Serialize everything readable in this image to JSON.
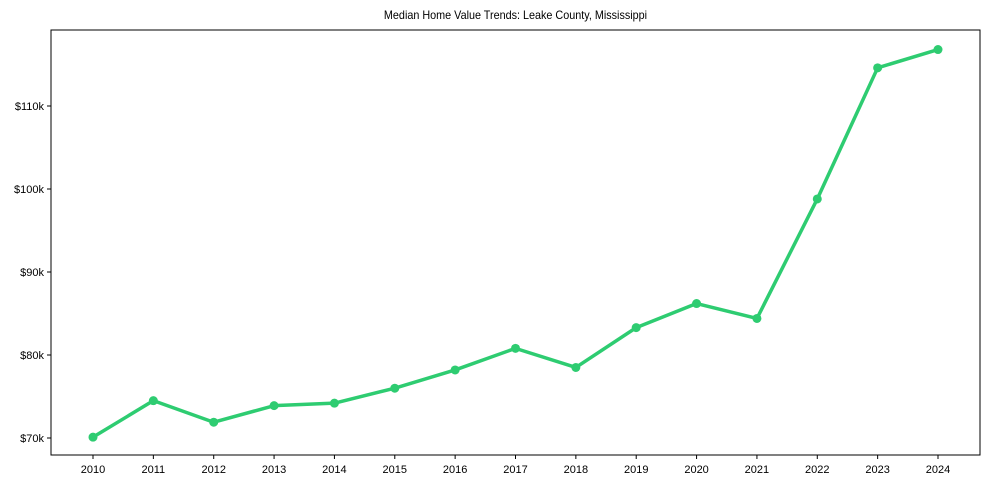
{
  "chart_data": {
    "type": "line",
    "title": "Median Home Value Trends: Leake County, Mississippi",
    "xlabel": "",
    "ylabel": "",
    "categories": [
      "2010",
      "2011",
      "2012",
      "2013",
      "2014",
      "2015",
      "2016",
      "2017",
      "2018",
      "2019",
      "2020",
      "2021",
      "2022",
      "2023",
      "2024"
    ],
    "series": [
      {
        "name": "Median Home Value",
        "color": "#2ecc71",
        "values": [
          70100,
          74500,
          71900,
          73900,
          74200,
          76000,
          78200,
          80800,
          78500,
          83300,
          86200,
          84400,
          98800,
          114600,
          116800
        ]
      }
    ],
    "yticks": [
      70000,
      80000,
      90000,
      100000,
      110000
    ],
    "ytick_labels": [
      "$70k",
      "$80k",
      "$90k",
      "$100k",
      "$110k"
    ],
    "ylim": [
      68000,
      119000
    ],
    "grid": false,
    "legend": null,
    "markers": true
  },
  "header": {
    "title": "Median Home Value Trends: Leake County, Mississippi"
  }
}
